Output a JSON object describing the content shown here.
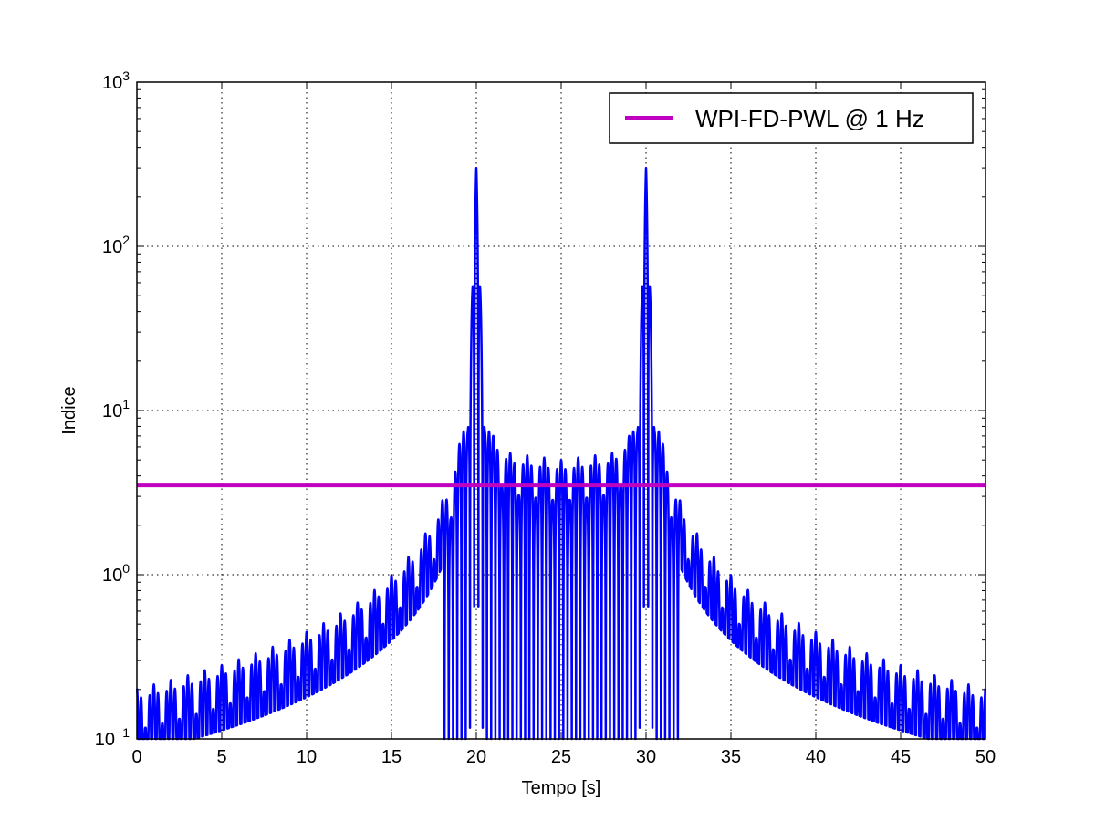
{
  "chart_data": {
    "type": "line",
    "title": "",
    "xlabel": "Tempo [s]",
    "ylabel": "Indice",
    "xlim": [
      0,
      50
    ],
    "ylim": [
      0.1,
      1000
    ],
    "yscale": "log",
    "grid": true,
    "grid_style": "dotted",
    "legend_position": "top-right",
    "x_ticks": [
      0,
      5,
      10,
      15,
      20,
      25,
      30,
      35,
      40,
      45,
      50
    ],
    "x_tick_labels": [
      "0",
      "5",
      "10",
      "15",
      "20",
      "25",
      "30",
      "35",
      "40",
      "45",
      "50"
    ],
    "y_ticks": [
      {
        "value": 0.1,
        "base": "10",
        "exp": "−1"
      },
      {
        "value": 1,
        "base": "10",
        "exp": "0"
      },
      {
        "value": 10,
        "base": "10",
        "exp": "1"
      },
      {
        "value": 100,
        "base": "10",
        "exp": "2"
      },
      {
        "value": 1000,
        "base": "10",
        "exp": "3"
      }
    ],
    "series": [
      {
        "name": "",
        "color": "#0000ff",
        "description": "oscillating signal",
        "peaks": [
          {
            "x": 20,
            "y": 300
          },
          {
            "x": 30,
            "y": 300
          }
        ],
        "envelope_upper": [
          [
            0,
            0.17
          ],
          [
            5,
            0.2
          ],
          [
            10,
            0.3
          ],
          [
            15,
            0.75
          ],
          [
            17,
            1.5
          ],
          [
            18.5,
            3
          ],
          [
            19.5,
            10
          ],
          [
            20,
            300
          ],
          [
            20.5,
            10
          ],
          [
            21,
            7
          ],
          [
            22,
            5.5
          ],
          [
            25,
            5
          ],
          [
            28,
            5.5
          ],
          [
            29,
            7
          ],
          [
            29.5,
            10
          ],
          [
            30,
            300
          ],
          [
            30.5,
            10
          ],
          [
            31.5,
            3
          ],
          [
            33,
            1.5
          ],
          [
            35,
            0.75
          ],
          [
            40,
            0.3
          ],
          [
            45,
            0.2
          ],
          [
            50,
            0.17
          ]
        ],
        "envelope_lower": [
          [
            0,
            0.1
          ],
          [
            17,
            0.1
          ],
          [
            18,
            0.1
          ],
          [
            21,
            0.1
          ],
          [
            29,
            0.1
          ],
          [
            32,
            0.1
          ],
          [
            50,
            0.1
          ]
        ]
      },
      {
        "name": "WPI-FD-PWL @ 1 Hz",
        "color": "#bf00bf",
        "values_constant": 3.5,
        "x_range": [
          0,
          50
        ]
      }
    ],
    "legend": [
      {
        "label": "WPI-FD-PWL @ 1 Hz",
        "color": "#bf00bf"
      }
    ]
  }
}
